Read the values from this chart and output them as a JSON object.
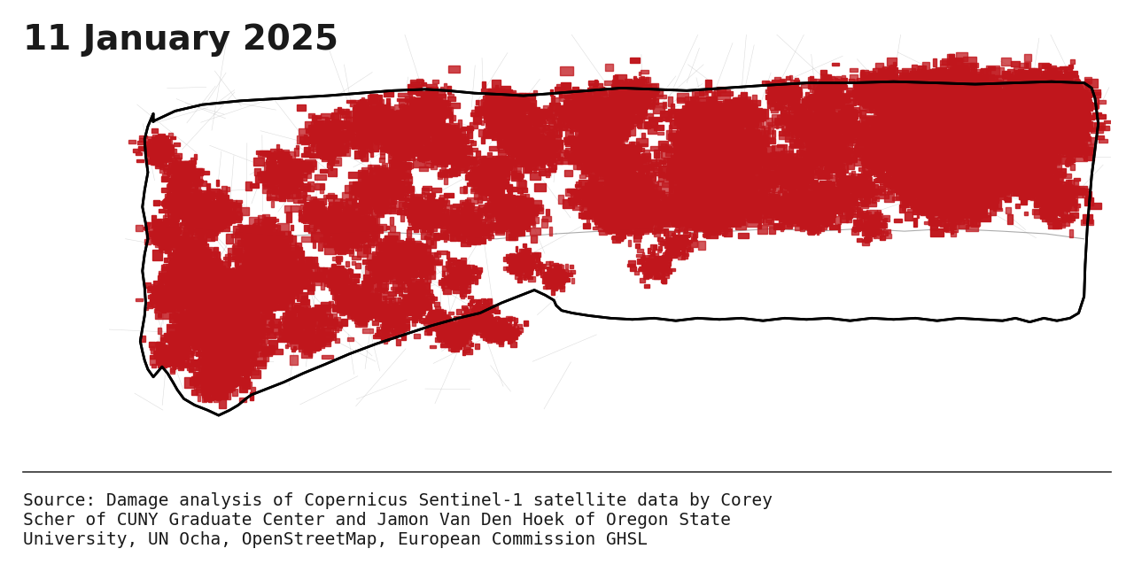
{
  "title": "11 January 2025",
  "title_fontsize": 28,
  "title_color": "#1a1a1a",
  "source_text": "Source: Damage analysis of Copernicus Sentinel-1 satellite data by Corey\nScher of CUNY Graduate Center and Jamon Van Den Hoek of Oregon State\nUniversity, UN Ocha, OpenStreetMap, European Commission GHSL",
  "source_fontsize": 14,
  "background_color": "#ffffff",
  "map_background": "#ffffff",
  "border_color": "#000000",
  "border_linewidth": 2.0,
  "damage_color": "#c0161c",
  "road_color": "#aaaaaa",
  "road_linewidth": 0.5,
  "separator_color": "#333333",
  "bbc_bg": "#000000",
  "bbc_text": "#ffffff"
}
